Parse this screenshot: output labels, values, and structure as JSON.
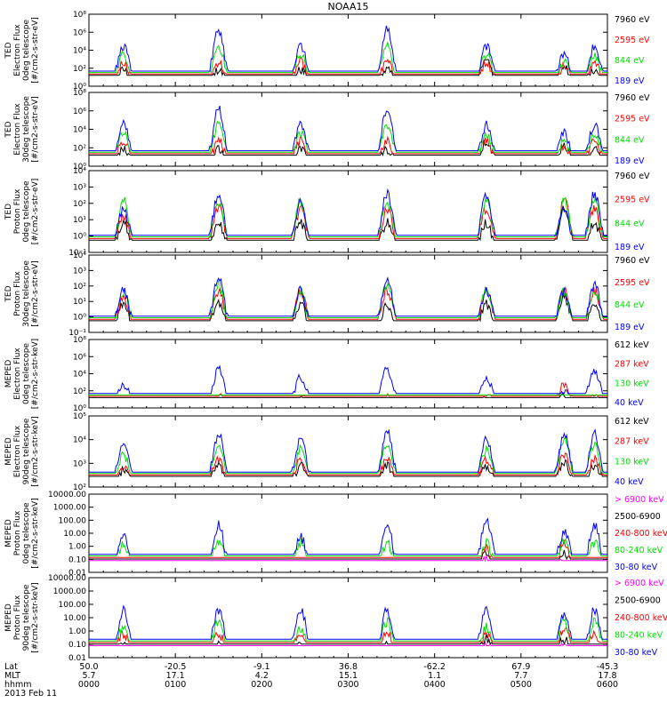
{
  "title": "NOAA15",
  "colors": {
    "black": "#000000",
    "red": "#ff0000",
    "green": "#00e000",
    "blue": "#0000ff",
    "magenta": "#ff00ff"
  },
  "footer": {
    "rows": [
      {
        "label": "Lat",
        "values": [
          "50.0",
          "-20.5",
          "-9.1",
          "36.8",
          "-62.2",
          "67.9",
          "-45.3"
        ]
      },
      {
        "label": "MLT",
        "values": [
          "5.7",
          "17.1",
          "4.2",
          "15.1",
          "1.1",
          "7.7",
          "17.8"
        ]
      },
      {
        "label": "hhmm",
        "values": [
          "0000",
          "0100",
          "0200",
          "0300",
          "0400",
          "0500",
          "0600"
        ]
      }
    ],
    "date": "2013 Feb 11"
  },
  "chart_data": [
    {
      "type": "line",
      "ylabel": [
        "TED",
        "Electron Flux",
        "0deg telescope",
        "[#/cm2-s-str-eV]"
      ],
      "log": true,
      "yticks": [
        "10⁰",
        "10²",
        "10⁴",
        "10⁶",
        "10⁸"
      ],
      "ylim": [
        1,
        100000000
      ],
      "xlim": [
        0,
        6
      ],
      "legend": [
        {
          "name": "7960 eV",
          "color": "black"
        },
        {
          "name": "2595 eV",
          "color": "red"
        },
        {
          "name": "844 eV",
          "color": "green"
        },
        {
          "name": "189 eV",
          "color": "blue"
        }
      ],
      "series": [
        {
          "name": "7960 eV",
          "color": "black",
          "peak_exp": [
            2,
            2,
            2,
            2,
            3,
            2.5,
            2
          ]
        },
        {
          "name": "2595 eV",
          "color": "red",
          "peak_exp": [
            3,
            3,
            3,
            3,
            3,
            2.5,
            3
          ]
        },
        {
          "name": "844 eV",
          "color": "green",
          "peak_exp": [
            4,
            5,
            4,
            5,
            4,
            3,
            4
          ]
        },
        {
          "name": "189 eV",
          "color": "blue",
          "peak_exp": [
            5,
            7,
            5,
            7,
            5,
            4,
            5
          ]
        }
      ]
    },
    {
      "type": "line",
      "ylabel": [
        "TED",
        "Electron Flux",
        "30deg telescope",
        "[#/cm2-s-str-eV]"
      ],
      "log": true,
      "yticks": [
        "10⁰",
        "10²",
        "10⁴",
        "10⁶",
        "10⁸"
      ],
      "ylim": [
        1,
        100000000
      ],
      "xlim": [
        0,
        6
      ],
      "legend": [
        {
          "name": "7960 eV",
          "color": "black"
        },
        {
          "name": "2595 eV",
          "color": "red"
        },
        {
          "name": "844 eV",
          "color": "green"
        },
        {
          "name": "189 eV",
          "color": "blue"
        }
      ],
      "series": [
        {
          "name": "7960 eV",
          "color": "black",
          "peak_exp": [
            2,
            2,
            2,
            2,
            3,
            2.5,
            2
          ]
        },
        {
          "name": "2595 eV",
          "color": "red",
          "peak_exp": [
            3,
            3,
            3,
            3,
            3,
            2.5,
            3
          ]
        },
        {
          "name": "844 eV",
          "color": "green",
          "peak_exp": [
            4,
            5,
            4,
            5,
            4,
            3,
            4
          ]
        },
        {
          "name": "189 eV",
          "color": "blue",
          "peak_exp": [
            5,
            7,
            5,
            7,
            5,
            4,
            5
          ]
        }
      ]
    },
    {
      "type": "line",
      "ylabel": [
        "TED",
        "Proton Flux",
        "0deg telescope",
        "[#/cm2-s-str-eV]"
      ],
      "log": true,
      "yticks": [
        "10⁻¹",
        "10⁰",
        "10¹",
        "10²",
        "10³",
        "10⁴"
      ],
      "ylim": [
        0.1,
        10000
      ],
      "xlim": [
        0,
        6
      ],
      "legend": [
        {
          "name": "7960 eV",
          "color": "black"
        },
        {
          "name": "2595 eV",
          "color": "red"
        },
        {
          "name": "844 eV",
          "color": "green"
        },
        {
          "name": "189 eV",
          "color": "blue"
        }
      ],
      "series": [
        {
          "name": "7960 eV",
          "color": "black",
          "peak_exp": [
            1,
            1,
            1,
            1,
            1,
            2,
            1
          ]
        },
        {
          "name": "2595 eV",
          "color": "red",
          "peak_exp": [
            1.5,
            2,
            2,
            2,
            2,
            2.5,
            2
          ]
        },
        {
          "name": "844 eV",
          "color": "green",
          "peak_exp": [
            2.5,
            2.5,
            2.5,
            2.5,
            2.5,
            2.5,
            2.5
          ]
        },
        {
          "name": "189 eV",
          "color": "blue",
          "peak_exp": [
            2,
            3,
            2.5,
            3,
            3,
            2,
            3
          ]
        }
      ]
    },
    {
      "type": "line",
      "ylabel": [
        "TED",
        "Proton Flux",
        "30deg telescope",
        "[#/cm2-s-str-eV]"
      ],
      "log": true,
      "yticks": [
        "10⁻¹",
        "10⁰",
        "10¹",
        "10²",
        "10³",
        "10⁴"
      ],
      "ylim": [
        0.1,
        10000
      ],
      "xlim": [
        0,
        6
      ],
      "legend": [
        {
          "name": "7960 eV",
          "color": "black"
        },
        {
          "name": "2595 eV",
          "color": "red"
        },
        {
          "name": "844 eV",
          "color": "green"
        },
        {
          "name": "189 eV",
          "color": "blue"
        }
      ],
      "series": [
        {
          "name": "7960 eV",
          "color": "black",
          "peak_exp": [
            1,
            1,
            1,
            1,
            1,
            1.5,
            1
          ]
        },
        {
          "name": "2595 eV",
          "color": "red",
          "peak_exp": [
            1.5,
            2,
            2,
            2,
            2,
            2,
            2
          ]
        },
        {
          "name": "844 eV",
          "color": "green",
          "peak_exp": [
            2,
            2.5,
            2,
            2.5,
            2,
            2,
            2
          ]
        },
        {
          "name": "189 eV",
          "color": "blue",
          "peak_exp": [
            2,
            3,
            2,
            3,
            2,
            2,
            2.5
          ]
        }
      ]
    },
    {
      "type": "line",
      "ylabel": [
        "MEPED",
        "Electron Flux",
        "0deg telescope",
        "[#/cm2-s-str-keV]"
      ],
      "log": true,
      "yticks": [
        "10⁰",
        "10²",
        "10⁴",
        "10⁶",
        "10⁸"
      ],
      "ylim": [
        1,
        100000000
      ],
      "xlim": [
        0,
        6
      ],
      "legend": [
        {
          "name": "612 keV",
          "color": "black"
        },
        {
          "name": "287 keV",
          "color": "red"
        },
        {
          "name": "130 keV",
          "color": "green"
        },
        {
          "name": "40 keV",
          "color": "blue"
        }
      ],
      "series": [
        {
          "name": "612 keV",
          "color": "black",
          "peak_exp": [
            1,
            1,
            1,
            1,
            1,
            1.5,
            1
          ]
        },
        {
          "name": "287 keV",
          "color": "red",
          "peak_exp": [
            1,
            1.5,
            1.5,
            1.5,
            1.5,
            3,
            1.5
          ]
        },
        {
          "name": "130 keV",
          "color": "green",
          "peak_exp": [
            0.5,
            0.5,
            0.5,
            0.5,
            0.5,
            1,
            0.5
          ]
        },
        {
          "name": "40 keV",
          "color": "blue",
          "peak_exp": [
            3,
            5,
            4,
            5,
            4,
            2,
            5
          ]
        }
      ]
    },
    {
      "type": "line",
      "ylabel": [
        "MEPED",
        "Electron Flux",
        "90deg telescope",
        "[#/cm2-s-str-keV]"
      ],
      "log": true,
      "yticks": [
        "10²",
        "10³",
        "10⁴",
        "10⁵"
      ],
      "ylim": [
        100,
        100000
      ],
      "xlim": [
        0,
        6
      ],
      "legend": [
        {
          "name": "612 keV",
          "color": "black"
        },
        {
          "name": "287 keV",
          "color": "red"
        },
        {
          "name": "130 keV",
          "color": "green"
        },
        {
          "name": "40 keV",
          "color": "blue"
        }
      ],
      "series": [
        {
          "name": "612 keV",
          "color": "black",
          "peak_exp": [
            2.8,
            3,
            3,
            3,
            3,
            3.2,
            3
          ]
        },
        {
          "name": "287 keV",
          "color": "red",
          "peak_exp": [
            3,
            3.3,
            3.3,
            3.3,
            3.3,
            3.5,
            3.3
          ]
        },
        {
          "name": "130 keV",
          "color": "green",
          "peak_exp": [
            3.5,
            4,
            3.8,
            4,
            3.8,
            4.2,
            4
          ]
        },
        {
          "name": "40 keV",
          "color": "blue",
          "peak_exp": [
            4,
            4.5,
            4.3,
            4.6,
            4.3,
            4.5,
            4.5
          ]
        }
      ]
    },
    {
      "type": "line",
      "ylabel": [
        "MEPED",
        "Proton Flux",
        "0deg telescope",
        "[#/cm2-s-str-keV]"
      ],
      "log": true,
      "yticks": [
        "0.01",
        "0.10",
        "1.00",
        "10.00",
        "100.00",
        "1000.00",
        "10000.00"
      ],
      "ylim": [
        0.01,
        10000
      ],
      "xlim": [
        0,
        6
      ],
      "legend": [
        {
          "name": "> 6900 keV",
          "color": "magenta"
        },
        {
          "name": "2500-6900",
          "color": "black"
        },
        {
          "name": "240-800 keV",
          "color": "red"
        },
        {
          "name": "80-240 keV",
          "color": "green"
        },
        {
          "name": "30-80 keV",
          "color": "blue"
        }
      ],
      "series": [
        {
          "name": "> 6900 keV",
          "color": "magenta",
          "peak_exp": [
            -2,
            -2,
            -2,
            -2,
            -1,
            -1,
            -2
          ]
        },
        {
          "name": "2500-6900",
          "color": "black",
          "peak_exp": [
            -2,
            -2,
            -2,
            -2,
            -0.5,
            -0.5,
            -2
          ]
        },
        {
          "name": "240-800 keV",
          "color": "red",
          "peak_exp": [
            -1,
            -1,
            -1,
            -1,
            0,
            0.5,
            -1
          ]
        },
        {
          "name": "80-240 keV",
          "color": "green",
          "peak_exp": [
            0.5,
            0.5,
            0.5,
            0.5,
            0.5,
            0.5,
            0.5
          ]
        },
        {
          "name": "30-80 keV",
          "color": "blue",
          "peak_exp": [
            1,
            2,
            1,
            2,
            2.5,
            1.5,
            2
          ]
        }
      ]
    },
    {
      "type": "line",
      "ylabel": [
        "MEPED",
        "Proton Flux",
        "90deg telescope",
        "[#/cm2-s-str-keV]"
      ],
      "log": true,
      "yticks": [
        "0.01",
        "0.10",
        "1.00",
        "10.00",
        "100.00",
        "1000.00",
        "10000.00"
      ],
      "ylim": [
        0.01,
        10000
      ],
      "xlim": [
        0,
        6
      ],
      "legend": [
        {
          "name": "> 6900 keV",
          "color": "magenta"
        },
        {
          "name": "2500-6900",
          "color": "black"
        },
        {
          "name": "240-800 keV",
          "color": "red"
        },
        {
          "name": "80-240 keV",
          "color": "green"
        },
        {
          "name": "30-80 keV",
          "color": "blue"
        }
      ],
      "series": [
        {
          "name": "> 6900 keV",
          "color": "magenta",
          "peak_exp": [
            -2,
            -2,
            -2,
            -2,
            -1,
            -1,
            -2
          ]
        },
        {
          "name": "2500-6900",
          "color": "black",
          "peak_exp": [
            -1,
            -1,
            -1,
            -1,
            -0.5,
            -0.5,
            -1
          ]
        },
        {
          "name": "240-800 keV",
          "color": "red",
          "peak_exp": [
            0,
            0,
            0,
            0,
            0,
            0.5,
            0
          ]
        },
        {
          "name": "80-240 keV",
          "color": "green",
          "peak_exp": [
            0.5,
            1,
            0.5,
            1,
            0.5,
            1,
            1
          ]
        },
        {
          "name": "30-80 keV",
          "color": "blue",
          "peak_exp": [
            2,
            2,
            2,
            2,
            2,
            1.5,
            2
          ]
        }
      ]
    }
  ]
}
